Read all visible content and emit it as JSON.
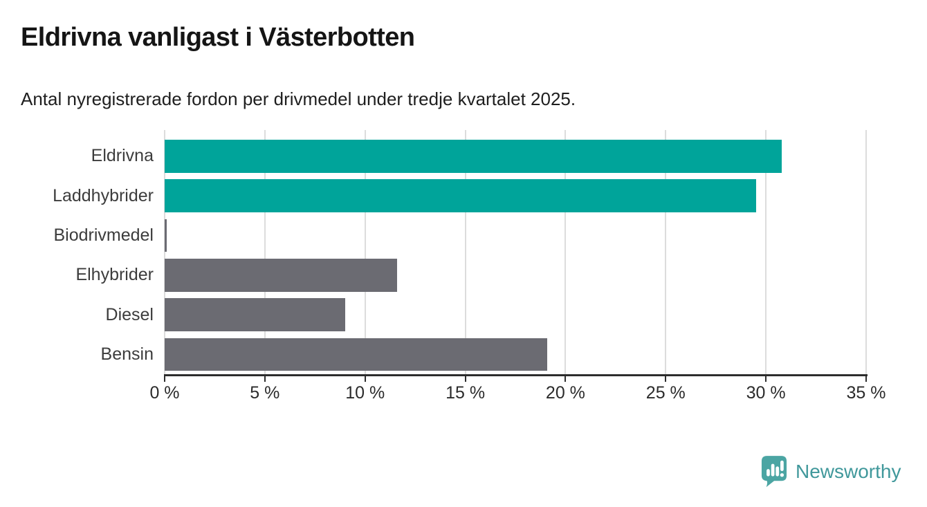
{
  "header": {
    "title": "Eldrivna vanligast i Västerbotten",
    "subtitle": "Antal nyregistrerade fordon per drivmedel under tredje kvartalet 2025."
  },
  "chart_data": {
    "type": "bar",
    "orientation": "horizontal",
    "title": "Eldrivna vanligast i Västerbotten",
    "subtitle": "Antal nyregistrerade fordon per drivmedel under tredje kvartalet 2025.",
    "categories": [
      "Eldrivna",
      "Laddhybrider",
      "Biodrivmedel",
      "Elhybrider",
      "Diesel",
      "Bensin"
    ],
    "values": [
      30.8,
      29.5,
      0.1,
      11.6,
      9.0,
      19.1
    ],
    "unit": "%",
    "xlim": [
      0,
      35
    ],
    "x_ticks": [
      0,
      5,
      10,
      15,
      20,
      25,
      30,
      35
    ],
    "x_tick_labels": [
      "0 %",
      "5 %",
      "10 %",
      "15 %",
      "20 %",
      "25 %",
      "30 %",
      "35 %"
    ],
    "bar_colors": [
      "#00a49a",
      "#00a49a",
      "#6b6b72",
      "#6b6b72",
      "#6b6b72",
      "#6b6b72"
    ],
    "grid": true,
    "legend": "none",
    "xlabel": "",
    "ylabel": ""
  },
  "colors": {
    "teal": "#00a49a",
    "gray": "#6b6b72",
    "gridline": "#dcdcdc",
    "axis": "#2d2d2d",
    "logo": "#4ba5a3",
    "logo_text": "#40989b"
  },
  "branding": {
    "logo_text": "Newsworthy"
  }
}
